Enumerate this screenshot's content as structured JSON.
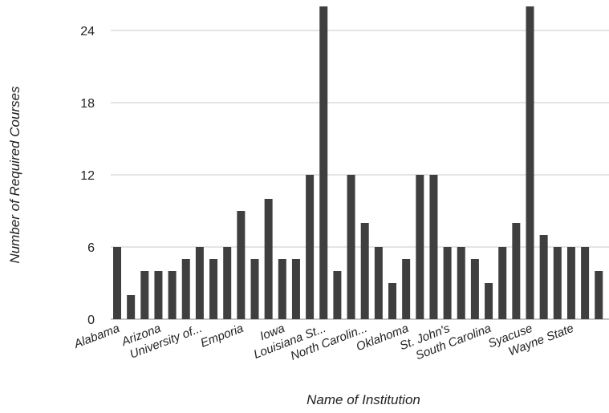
{
  "chart_data": {
    "type": "bar",
    "title": "",
    "xlabel": "Name of Institution",
    "ylabel": "Number of Required Courses",
    "ylim": [
      0,
      26
    ],
    "yticks": [
      0,
      6,
      12,
      18,
      24
    ],
    "grid": true,
    "legend": "none",
    "bar_color": "#3f3f3f",
    "values": [
      6,
      2,
      4,
      4,
      4,
      5,
      6,
      5,
      6,
      9,
      5,
      10,
      5,
      5,
      12,
      26,
      4,
      12,
      8,
      6,
      3,
      5,
      12,
      12,
      6,
      6,
      5,
      3,
      6,
      8,
      26,
      7,
      6,
      6,
      6,
      4
    ],
    "tick_labels": [
      {
        "bar_index": 0,
        "text": "Alabama"
      },
      {
        "bar_index": 3,
        "text": "Arizona"
      },
      {
        "bar_index": 6,
        "text": "University of..."
      },
      {
        "bar_index": 9,
        "text": "Emporia"
      },
      {
        "bar_index": 12,
        "text": "Iowa"
      },
      {
        "bar_index": 15,
        "text": "Louisiana St..."
      },
      {
        "bar_index": 18,
        "text": "North Carolin..."
      },
      {
        "bar_index": 21,
        "text": "Oklahoma"
      },
      {
        "bar_index": 24,
        "text": "St. John's"
      },
      {
        "bar_index": 27,
        "text": "South Carolina"
      },
      {
        "bar_index": 30,
        "text": "Syacuse"
      },
      {
        "bar_index": 33,
        "text": "Wayne State"
      }
    ]
  }
}
